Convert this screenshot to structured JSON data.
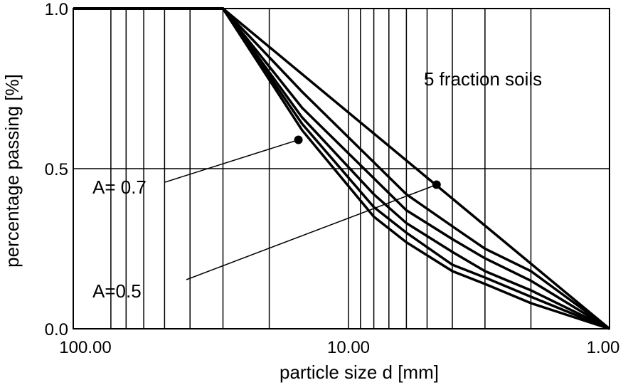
{
  "chart_data": {
    "type": "line",
    "title": "",
    "xlabel": "particle size d [mm]",
    "ylabel": "percentage passing [%]",
    "x_scale": "log",
    "x_reversed": true,
    "xlim": [
      100,
      1
    ],
    "ylim": [
      0,
      1
    ],
    "x_tick_labels": [
      "100.00",
      "10.00",
      "1.00"
    ],
    "y_tick_labels": [
      "0.0",
      "0.5",
      "1.0"
    ],
    "x_gridlines": [
      80,
      70,
      60,
      50,
      40,
      30,
      20,
      10,
      9,
      8,
      7,
      6,
      5,
      4,
      3,
      2
    ],
    "y_gridlines": [
      0.5
    ],
    "grid": true,
    "line_color": "#000000",
    "series": [
      {
        "x": [
          120,
          30,
          15,
          8,
          6,
          4,
          3,
          2,
          1
        ],
        "y": [
          1.0,
          1.0,
          0.62,
          0.35,
          0.27,
          0.18,
          0.14,
          0.08,
          0.0
        ]
      },
      {
        "x": [
          120,
          30,
          15,
          8,
          6,
          4,
          3,
          2,
          1
        ],
        "y": [
          1.0,
          1.0,
          0.64,
          0.38,
          0.3,
          0.2,
          0.16,
          0.1,
          0.0
        ]
      },
      {
        "x": [
          120,
          30,
          15,
          8,
          6,
          4,
          3,
          2,
          1
        ],
        "y": [
          1.0,
          1.0,
          0.66,
          0.42,
          0.33,
          0.24,
          0.18,
          0.12,
          0.0
        ]
      },
      {
        "x": [
          120,
          30,
          15,
          8,
          6,
          4,
          3,
          2,
          1
        ],
        "y": [
          1.0,
          1.0,
          0.69,
          0.47,
          0.37,
          0.28,
          0.22,
          0.15,
          0.0
        ]
      },
      {
        "x": [
          120,
          30,
          15,
          8,
          6,
          4,
          3,
          2,
          1
        ],
        "y": [
          1.0,
          1.0,
          0.74,
          0.52,
          0.42,
          0.32,
          0.25,
          0.18,
          0.0
        ]
      },
      {
        "x": [
          120,
          30,
          1
        ],
        "y": [
          1.0,
          1.0,
          0.0
        ]
      }
    ],
    "points": [
      {
        "x": 15.5,
        "y": 0.59
      },
      {
        "x": 4.6,
        "y": 0.45
      }
    ],
    "annotations": [
      {
        "text": "5 fraction soils"
      },
      {
        "text": "A= 0.7",
        "points_to": 0
      },
      {
        "text": "A=0.5",
        "points_to": 1
      }
    ]
  }
}
